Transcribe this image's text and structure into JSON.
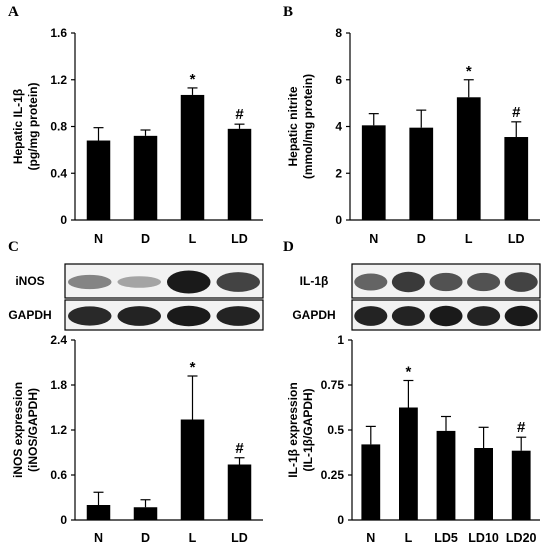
{
  "chart_data": [
    {
      "panel": "A",
      "type": "bar",
      "categories": [
        "N",
        "D",
        "L",
        "LD"
      ],
      "values": [
        0.68,
        0.72,
        1.07,
        0.78
      ],
      "errors": [
        0.11,
        0.05,
        0.06,
        0.04
      ],
      "annotations": [
        "",
        "",
        "*",
        "#"
      ],
      "ylabel": [
        "Hepatic IL-1β",
        "(pg/mg protein)"
      ],
      "yticks": [
        "0",
        "0.4",
        "0.8",
        "1.2",
        "1.6"
      ],
      "ylim": [
        0,
        1.6
      ]
    },
    {
      "panel": "B",
      "type": "bar",
      "categories": [
        "N",
        "D",
        "L",
        "LD"
      ],
      "values": [
        4.05,
        3.95,
        5.25,
        3.55
      ],
      "errors": [
        0.5,
        0.75,
        0.75,
        0.65
      ],
      "annotations": [
        "",
        "",
        "*",
        "#"
      ],
      "ylabel": [
        "Hepatic nitrite",
        "(mmol/mg protein)"
      ],
      "yticks": [
        "0",
        "2",
        "4",
        "6",
        "8"
      ],
      "ylim": [
        0,
        8
      ]
    },
    {
      "panel": "C",
      "type": "bar",
      "categories": [
        "N",
        "D",
        "L",
        "LD"
      ],
      "values": [
        0.2,
        0.17,
        1.34,
        0.74
      ],
      "errors": [
        0.17,
        0.1,
        0.58,
        0.09
      ],
      "annotations": [
        "",
        "",
        "*",
        "#"
      ],
      "ylabel": [
        "iNOS expression",
        "(iNOS/GAPDH)"
      ],
      "yticks": [
        "0",
        "0.6",
        "1.2",
        "1.8",
        "2.4"
      ],
      "ylim": [
        0,
        2.4
      ],
      "blot_labels": [
        "iNOS",
        "GAPDH"
      ]
    },
    {
      "panel": "D",
      "type": "bar",
      "categories": [
        "N",
        "L",
        "LD5",
        "LD10",
        "LD20"
      ],
      "values": [
        0.42,
        0.625,
        0.495,
        0.4,
        0.385
      ],
      "errors": [
        0.1,
        0.15,
        0.08,
        0.115,
        0.075
      ],
      "annotations": [
        "",
        "*",
        "",
        "",
        "#"
      ],
      "ylabel": [
        "IL-1β expression",
        "(IL-1β/GAPDH)"
      ],
      "yticks": [
        "0",
        "0.25",
        "0.5",
        "0.75",
        "1"
      ],
      "ylim": [
        0,
        1
      ],
      "blot_labels": [
        "IL-1β",
        "GAPDH"
      ]
    }
  ],
  "colors": {
    "bar": "#000000",
    "axis": "#000000",
    "blot_background": "#f2f2f2",
    "band": "#1a1a1a"
  }
}
